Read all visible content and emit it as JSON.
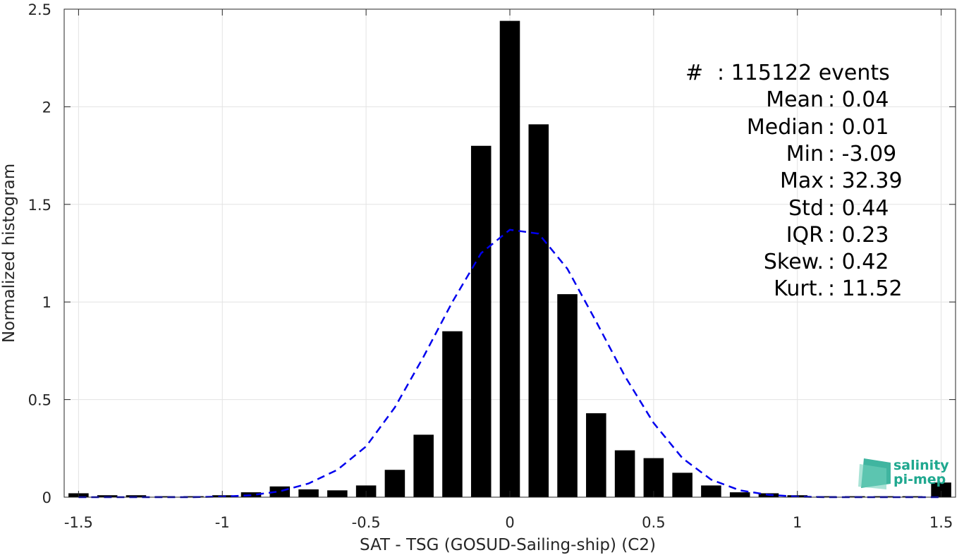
{
  "chart_data": {
    "type": "bar",
    "xlabel": "SAT - TSG (GOSUD-Sailing-ship) (C2)",
    "ylabel": "Normalized histogram",
    "xlim": [
      -1.55,
      1.55
    ],
    "ylim": [
      0,
      2.5
    ],
    "x_ticks": [
      -1.5,
      -1,
      -0.5,
      0,
      0.5,
      1,
      1.5
    ],
    "x_tick_labels": [
      "-1.5",
      "-1",
      "-0.5",
      "0",
      "0.5",
      "1",
      "1.5"
    ],
    "y_ticks": [
      0,
      0.5,
      1,
      1.5,
      2,
      2.5
    ],
    "y_tick_labels": [
      "0",
      "0.5",
      "1",
      "1.5",
      "2",
      "2.5"
    ],
    "grid": true,
    "bar_width": 0.07,
    "bar_color": "#000000",
    "x": [
      -1.5,
      -1.4,
      -1.3,
      -1.2,
      -1.1,
      -1.0,
      -0.9,
      -0.8,
      -0.7,
      -0.6,
      -0.5,
      -0.4,
      -0.3,
      -0.2,
      -0.1,
      0.0,
      0.1,
      0.2,
      0.3,
      0.4,
      0.5,
      0.6,
      0.7,
      0.8,
      0.9,
      1.0,
      1.1,
      1.2,
      1.3,
      1.4,
      1.5
    ],
    "values": [
      0.02,
      0.01,
      0.01,
      0.005,
      0.005,
      0.01,
      0.025,
      0.055,
      0.04,
      0.035,
      0.06,
      0.14,
      0.32,
      0.85,
      1.8,
      2.44,
      1.91,
      1.04,
      0.43,
      0.24,
      0.2,
      0.125,
      0.06,
      0.025,
      0.02,
      0.01,
      0.005,
      0.005,
      0.005,
      0.005,
      0.075
    ],
    "fit": {
      "style": "dashed",
      "color": "#0000ee",
      "x": [
        -1.5,
        -1.4,
        -1.3,
        -1.2,
        -1.1,
        -1.0,
        -0.9,
        -0.8,
        -0.7,
        -0.6,
        -0.5,
        -0.4,
        -0.3,
        -0.2,
        -0.1,
        0.0,
        0.1,
        0.2,
        0.3,
        0.4,
        0.5,
        0.6,
        0.7,
        0.8,
        0.9,
        1.0,
        1.1,
        1.2,
        1.3,
        1.4,
        1.5
      ],
      "y": [
        0.0,
        0.0,
        0.0,
        0.0,
        0.0,
        0.003,
        0.01,
        0.03,
        0.07,
        0.14,
        0.26,
        0.46,
        0.72,
        1.0,
        1.25,
        1.37,
        1.35,
        1.17,
        0.9,
        0.62,
        0.38,
        0.2,
        0.09,
        0.035,
        0.012,
        0.003,
        0.0,
        0.0,
        0.0,
        0.0,
        0.0
      ]
    },
    "stats": [
      "#  : 115122 events",
      "Mean : 0.04",
      "Median : 0.01",
      "Min : -3.09",
      "Max : 32.39",
      "Std : 0.44",
      "IQR : 0.23",
      "Skew. : 0.42",
      "Kurt. : 11.52"
    ]
  },
  "logo": {
    "line1": "salinity",
    "line2": "pi-mep",
    "color": "#1fa88f"
  }
}
